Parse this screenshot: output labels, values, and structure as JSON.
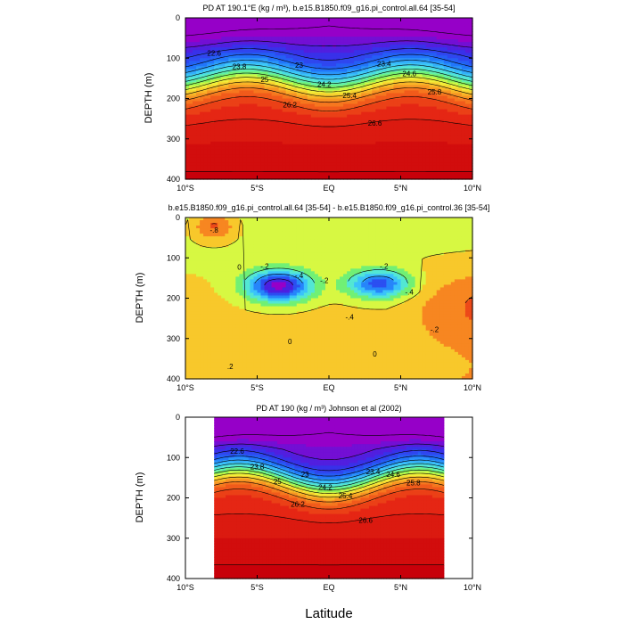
{
  "chart_data": [
    {
      "type": "contour",
      "title": "PD AT 190.1°E (kg / m³), b.e15.B1850.f09_g16.pi_control.all.64 [35-54]",
      "ylabel": "DEPTH (m)",
      "xlabel": "",
      "xlim": [
        -10,
        10
      ],
      "ylim": [
        400,
        0
      ],
      "y_inverted": true,
      "x_ticks": [
        "10°S",
        "5°S",
        "EQ",
        "5°N",
        "10°N"
      ],
      "y_ticks": [
        "0",
        "100",
        "200",
        "300",
        "400"
      ],
      "contour_labels": [
        "22.6",
        "23",
        "23.4",
        "23.8",
        "24.2",
        "24.6",
        "25",
        "25.4",
        "25.8",
        "26.2",
        "26.6"
      ],
      "levels": {
        "min": 21.8,
        "max": 27.0,
        "step": 0.2
      },
      "colormap": "rainbow (violet → blue → cyan → green → yellow → orange → red)"
    },
    {
      "type": "contour",
      "title": "b.e15.B1850.f09_g16.pi_control.all.64 [35-54] - b.e15.B1850.f09_g16.pi_control.36 [35-54]",
      "ylabel": "DEPTH (m)",
      "xlabel": "",
      "xlim": [
        -10,
        10
      ],
      "ylim": [
        400,
        0
      ],
      "y_inverted": true,
      "x_ticks": [
        "10°S",
        "5°S",
        "EQ",
        "5°N",
        "10°N"
      ],
      "y_ticks": [
        "0",
        "100",
        "200",
        "300",
        "400"
      ],
      "contour_labels": [
        "-.8",
        "-.4",
        "-.2",
        "0",
        "-.2",
        "-.4",
        "-.2",
        "-.4",
        "-.2",
        "0",
        "0",
        ".2"
      ],
      "levels": {
        "min": -0.9,
        "max": 0.3,
        "step": 0.1
      },
      "colormap": "rainbow (magenta → blue → cyan → green → yellow)"
    },
    {
      "type": "contour",
      "title": "PD AT 190 (kg / m³) Johnson et al (2002)",
      "ylabel": "DEPTH (m)",
      "xlabel": "Latitude",
      "xlim": [
        -10,
        10
      ],
      "data_xlim": [
        -8,
        8
      ],
      "ylim": [
        400,
        0
      ],
      "y_inverted": true,
      "x_ticks": [
        "10°S",
        "5°S",
        "EQ",
        "5°N",
        "10°N"
      ],
      "y_ticks": [
        "0",
        "100",
        "200",
        "300",
        "400"
      ],
      "contour_labels": [
        "22.6",
        "23",
        "23.4",
        "23.8",
        "24.2",
        "24.6",
        "25",
        "25.4",
        "25.8",
        "26.2",
        "26.6"
      ],
      "levels": {
        "min": 21.8,
        "max": 27.0,
        "step": 0.2
      },
      "colormap": "rainbow (violet → blue → cyan → green → yellow → orange → red)"
    }
  ]
}
